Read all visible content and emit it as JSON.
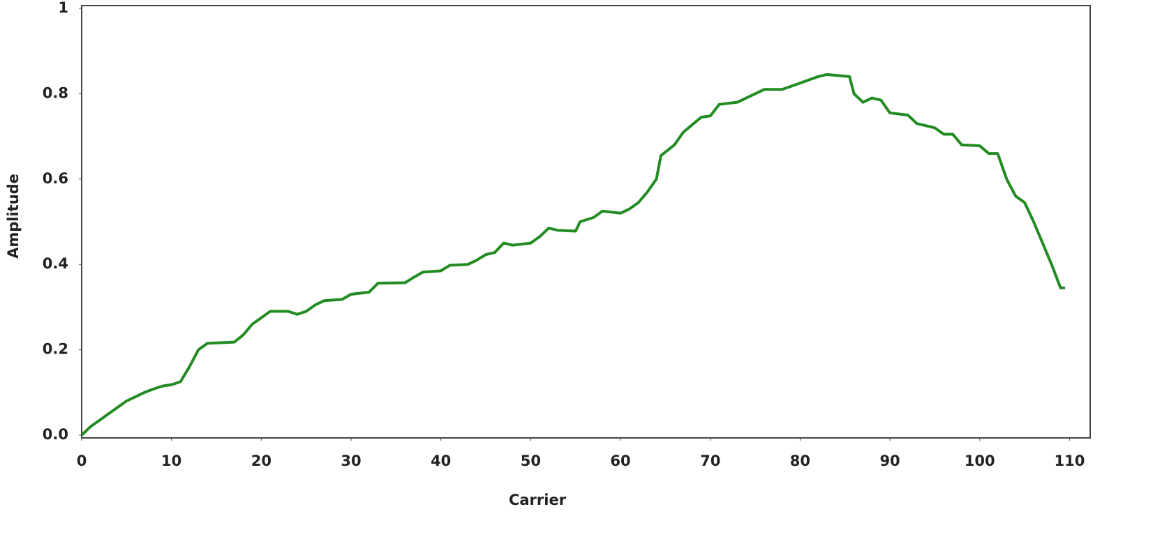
{
  "chart_data": {
    "type": "line",
    "x_label": "Carrier",
    "y_label": "Amplitude",
    "x": [
      0,
      1,
      2,
      3,
      4,
      5,
      6,
      7,
      8,
      9,
      10,
      11,
      12,
      13,
      14,
      15,
      17,
      18,
      19,
      20,
      21,
      23,
      24,
      25,
      26,
      27,
      29,
      30,
      32,
      33,
      36,
      37,
      38,
      40,
      41,
      43,
      44,
      45,
      46,
      47,
      48,
      50,
      51,
      52,
      53,
      55,
      55.5,
      57,
      58,
      60,
      61,
      62,
      63,
      64,
      64.5,
      66,
      67,
      69,
      70,
      71,
      73,
      74,
      76,
      78,
      80,
      82,
      83,
      85.5,
      86,
      87,
      88,
      89,
      90,
      92,
      93,
      95,
      96,
      97,
      98,
      100,
      101,
      102,
      103,
      104,
      105,
      106,
      107,
      108,
      109,
      109.5
    ],
    "series": [
      {
        "name": "Amplitude",
        "color": "#228b22",
        "values": [
          0,
          0.02,
          0.035,
          0.05,
          0.065,
          0.08,
          0.09,
          0.1,
          0.108,
          0.115,
          0.118,
          0.125,
          0.16,
          0.2,
          0.215,
          0.216,
          0.218,
          0.235,
          0.26,
          0.275,
          0.29,
          0.29,
          0.283,
          0.29,
          0.305,
          0.315,
          0.318,
          0.33,
          0.335,
          0.356,
          0.357,
          0.37,
          0.382,
          0.385,
          0.398,
          0.4,
          0.41,
          0.423,
          0.428,
          0.45,
          0.445,
          0.45,
          0.465,
          0.485,
          0.48,
          0.478,
          0.5,
          0.51,
          0.525,
          0.52,
          0.53,
          0.545,
          0.57,
          0.6,
          0.655,
          0.68,
          0.71,
          0.745,
          0.748,
          0.775,
          0.78,
          0.79,
          0.81,
          0.81,
          0.825,
          0.84,
          0.845,
          0.84,
          0.8,
          0.78,
          0.79,
          0.785,
          0.755,
          0.75,
          0.73,
          0.72,
          0.705,
          0.705,
          0.68,
          0.678,
          0.66,
          0.66,
          0.6,
          0.56,
          0.545,
          0.5,
          0.45,
          0.4,
          0.345,
          0.345
        ]
      }
    ],
    "xlim": [
      0,
      112.3
    ],
    "xticks": [
      0,
      10,
      20,
      30,
      40,
      50,
      60,
      70,
      80,
      90,
      100,
      110
    ],
    "ylim": [
      0,
      1
    ],
    "yticks": [
      {
        "value": 0,
        "label": "0.0"
      },
      0.2,
      0.4,
      0.6,
      0.8,
      1
    ],
    "grid": false
  }
}
